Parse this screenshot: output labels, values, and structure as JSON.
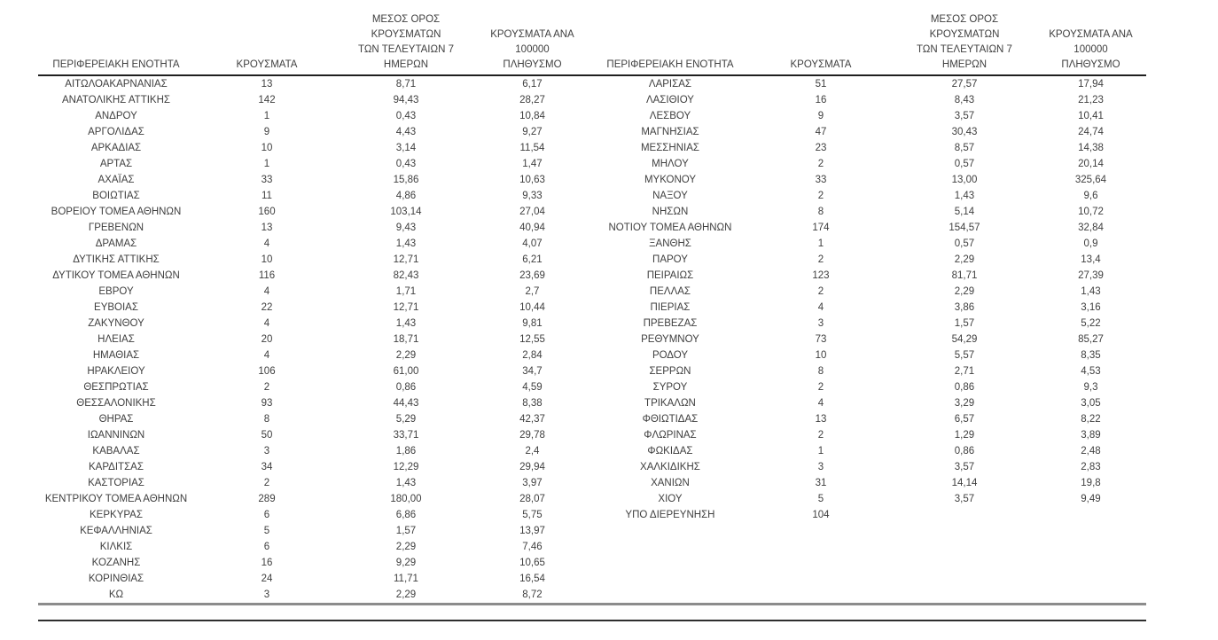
{
  "colors": {
    "text": "#3f3f3f",
    "header_rule": "#1f1f1f",
    "bottom_rule_thick": "#8c8c8c",
    "bottom_rule_thin": "#2e2e2e",
    "page_bg": "#ffffff"
  },
  "table": {
    "headers": {
      "region": "ΠΕΡΙΦΕΡΕΙΑΚΗ ΕΝΟΤΗΤΑ",
      "cases": "ΚΡΟΥΣΜΑΤΑ",
      "avg7day": "ΜΕΣΟΣ ΟΡΟΣ ΚΡΟΥΣΜΑΤΩΝ\nΤΩΝ ΤΕΛΕΥΤΑΙΩΝ 7\nΗΜΕΡΩΝ",
      "per100k": "ΚΡΟΥΣΜΑΤΑ ΑΝΑ 100000\nΠΛΗΘΥΣΜΟ"
    },
    "left_rows": [
      [
        "ΑΙΤΩΛΟΑΚΑΡΝΑΝΙΑΣ",
        "13",
        "8,71",
        "6,17"
      ],
      [
        "ΑΝΑΤΟΛΙΚΗΣ ΑΤΤΙΚΗΣ",
        "142",
        "94,43",
        "28,27"
      ],
      [
        "ΑΝΔΡΟΥ",
        "1",
        "0,43",
        "10,84"
      ],
      [
        "ΑΡΓΟΛΙΔΑΣ",
        "9",
        "4,43",
        "9,27"
      ],
      [
        "ΑΡΚΑΔΙΑΣ",
        "10",
        "3,14",
        "11,54"
      ],
      [
        "ΑΡΤΑΣ",
        "1",
        "0,43",
        "1,47"
      ],
      [
        "ΑΧΑΪΑΣ",
        "33",
        "15,86",
        "10,63"
      ],
      [
        "ΒΟΙΩΤΙΑΣ",
        "11",
        "4,86",
        "9,33"
      ],
      [
        "ΒΟΡΕΙΟΥ ΤΟΜΕΑ ΑΘΗΝΩΝ",
        "160",
        "103,14",
        "27,04"
      ],
      [
        "ΓΡΕΒΕΝΩΝ",
        "13",
        "9,43",
        "40,94"
      ],
      [
        "ΔΡΑΜΑΣ",
        "4",
        "1,43",
        "4,07"
      ],
      [
        "ΔΥΤΙΚΗΣ ΑΤΤΙΚΗΣ",
        "10",
        "12,71",
        "6,21"
      ],
      [
        "ΔΥΤΙΚΟΥ ΤΟΜΕΑ ΑΘΗΝΩΝ",
        "116",
        "82,43",
        "23,69"
      ],
      [
        "ΕΒΡΟΥ",
        "4",
        "1,71",
        "2,7"
      ],
      [
        "ΕΥΒΟΙΑΣ",
        "22",
        "12,71",
        "10,44"
      ],
      [
        "ΖΑΚΥΝΘΟΥ",
        "4",
        "1,43",
        "9,81"
      ],
      [
        "ΗΛΕΙΑΣ",
        "20",
        "18,71",
        "12,55"
      ],
      [
        "ΗΜΑΘΙΑΣ",
        "4",
        "2,29",
        "2,84"
      ],
      [
        "ΗΡΑΚΛΕΙΟΥ",
        "106",
        "61,00",
        "34,7"
      ],
      [
        "ΘΕΣΠΡΩΤΙΑΣ",
        "2",
        "0,86",
        "4,59"
      ],
      [
        "ΘΕΣΣΑΛΟΝΙΚΗΣ",
        "93",
        "44,43",
        "8,38"
      ],
      [
        "ΘΗΡΑΣ",
        "8",
        "5,29",
        "42,37"
      ],
      [
        "ΙΩΑΝΝΙΝΩΝ",
        "50",
        "33,71",
        "29,78"
      ],
      [
        "ΚΑΒΑΛΑΣ",
        "3",
        "1,86",
        "2,4"
      ],
      [
        "ΚΑΡΔΙΤΣΑΣ",
        "34",
        "12,29",
        "29,94"
      ],
      [
        "ΚΑΣΤΟΡΙΑΣ",
        "2",
        "1,43",
        "3,97"
      ],
      [
        "ΚΕΝΤΡΙΚΟΥ ΤΟΜΕΑ ΑΘΗΝΩΝ",
        "289",
        "180,00",
        "28,07"
      ],
      [
        "ΚΕΡΚΥΡΑΣ",
        "6",
        "6,86",
        "5,75"
      ],
      [
        "ΚΕΦΑΛΛΗΝΙΑΣ",
        "5",
        "1,57",
        "13,97"
      ],
      [
        "ΚΙΛΚΙΣ",
        "6",
        "2,29",
        "7,46"
      ],
      [
        "ΚΟΖΑΝΗΣ",
        "16",
        "9,29",
        "10,65"
      ],
      [
        "ΚΟΡΙΝΘΙΑΣ",
        "24",
        "11,71",
        "16,54"
      ],
      [
        "ΚΩ",
        "3",
        "2,29",
        "8,72"
      ]
    ],
    "right_rows": [
      [
        "ΛΑΡΙΣΑΣ",
        "51",
        "27,57",
        "17,94"
      ],
      [
        "ΛΑΣΙΘΙΟΥ",
        "16",
        "8,43",
        "21,23"
      ],
      [
        "ΛΕΣΒΟΥ",
        "9",
        "3,57",
        "10,41"
      ],
      [
        "ΜΑΓΝΗΣΙΑΣ",
        "47",
        "30,43",
        "24,74"
      ],
      [
        "ΜΕΣΣΗΝΙΑΣ",
        "23",
        "8,57",
        "14,38"
      ],
      [
        "ΜΗΛΟΥ",
        "2",
        "0,57",
        "20,14"
      ],
      [
        "ΜΥΚΟΝΟΥ",
        "33",
        "13,00",
        "325,64"
      ],
      [
        "ΝΑΞΟΥ",
        "2",
        "1,43",
        "9,6"
      ],
      [
        "ΝΗΣΩΝ",
        "8",
        "5,14",
        "10,72"
      ],
      [
        "ΝΟΤΙΟΥ ΤΟΜΕΑ ΑΘΗΝΩΝ",
        "174",
        "154,57",
        "32,84"
      ],
      [
        "ΞΑΝΘΗΣ",
        "1",
        "0,57",
        "0,9"
      ],
      [
        "ΠΑΡΟΥ",
        "2",
        "2,29",
        "13,4"
      ],
      [
        "ΠΕΙΡΑΙΩΣ",
        "123",
        "81,71",
        "27,39"
      ],
      [
        "ΠΕΛΛΑΣ",
        "2",
        "2,29",
        "1,43"
      ],
      [
        "ΠΙΕΡΙΑΣ",
        "4",
        "3,86",
        "3,16"
      ],
      [
        "ΠΡΕΒΕΖΑΣ",
        "3",
        "1,57",
        "5,22"
      ],
      [
        "ΡΕΘΥΜΝΟΥ",
        "73",
        "54,29",
        "85,27"
      ],
      [
        "ΡΟΔΟΥ",
        "10",
        "5,57",
        "8,35"
      ],
      [
        "ΣΕΡΡΩΝ",
        "8",
        "2,71",
        "4,53"
      ],
      [
        "ΣΥΡΟΥ",
        "2",
        "0,86",
        "9,3"
      ],
      [
        "ΤΡΙΚΑΛΩΝ",
        "4",
        "3,29",
        "3,05"
      ],
      [
        "ΦΘΙΩΤΙΔΑΣ",
        "13",
        "6,57",
        "8,22"
      ],
      [
        "ΦΛΩΡΙΝΑΣ",
        "2",
        "1,29",
        "3,89"
      ],
      [
        "ΦΩΚΙΔΑΣ",
        "1",
        "0,86",
        "2,48"
      ],
      [
        "ΧΑΛΚΙΔΙΚΗΣ",
        "3",
        "3,57",
        "2,83"
      ],
      [
        "ΧΑΝΙΩΝ",
        "31",
        "14,14",
        "19,8"
      ],
      [
        "ΧΙΟΥ",
        "5",
        "3,57",
        "9,49"
      ],
      [
        "ΥΠΟ ΔΙΕΡΕΥΝΗΣΗ",
        "104",
        "",
        ""
      ]
    ]
  }
}
